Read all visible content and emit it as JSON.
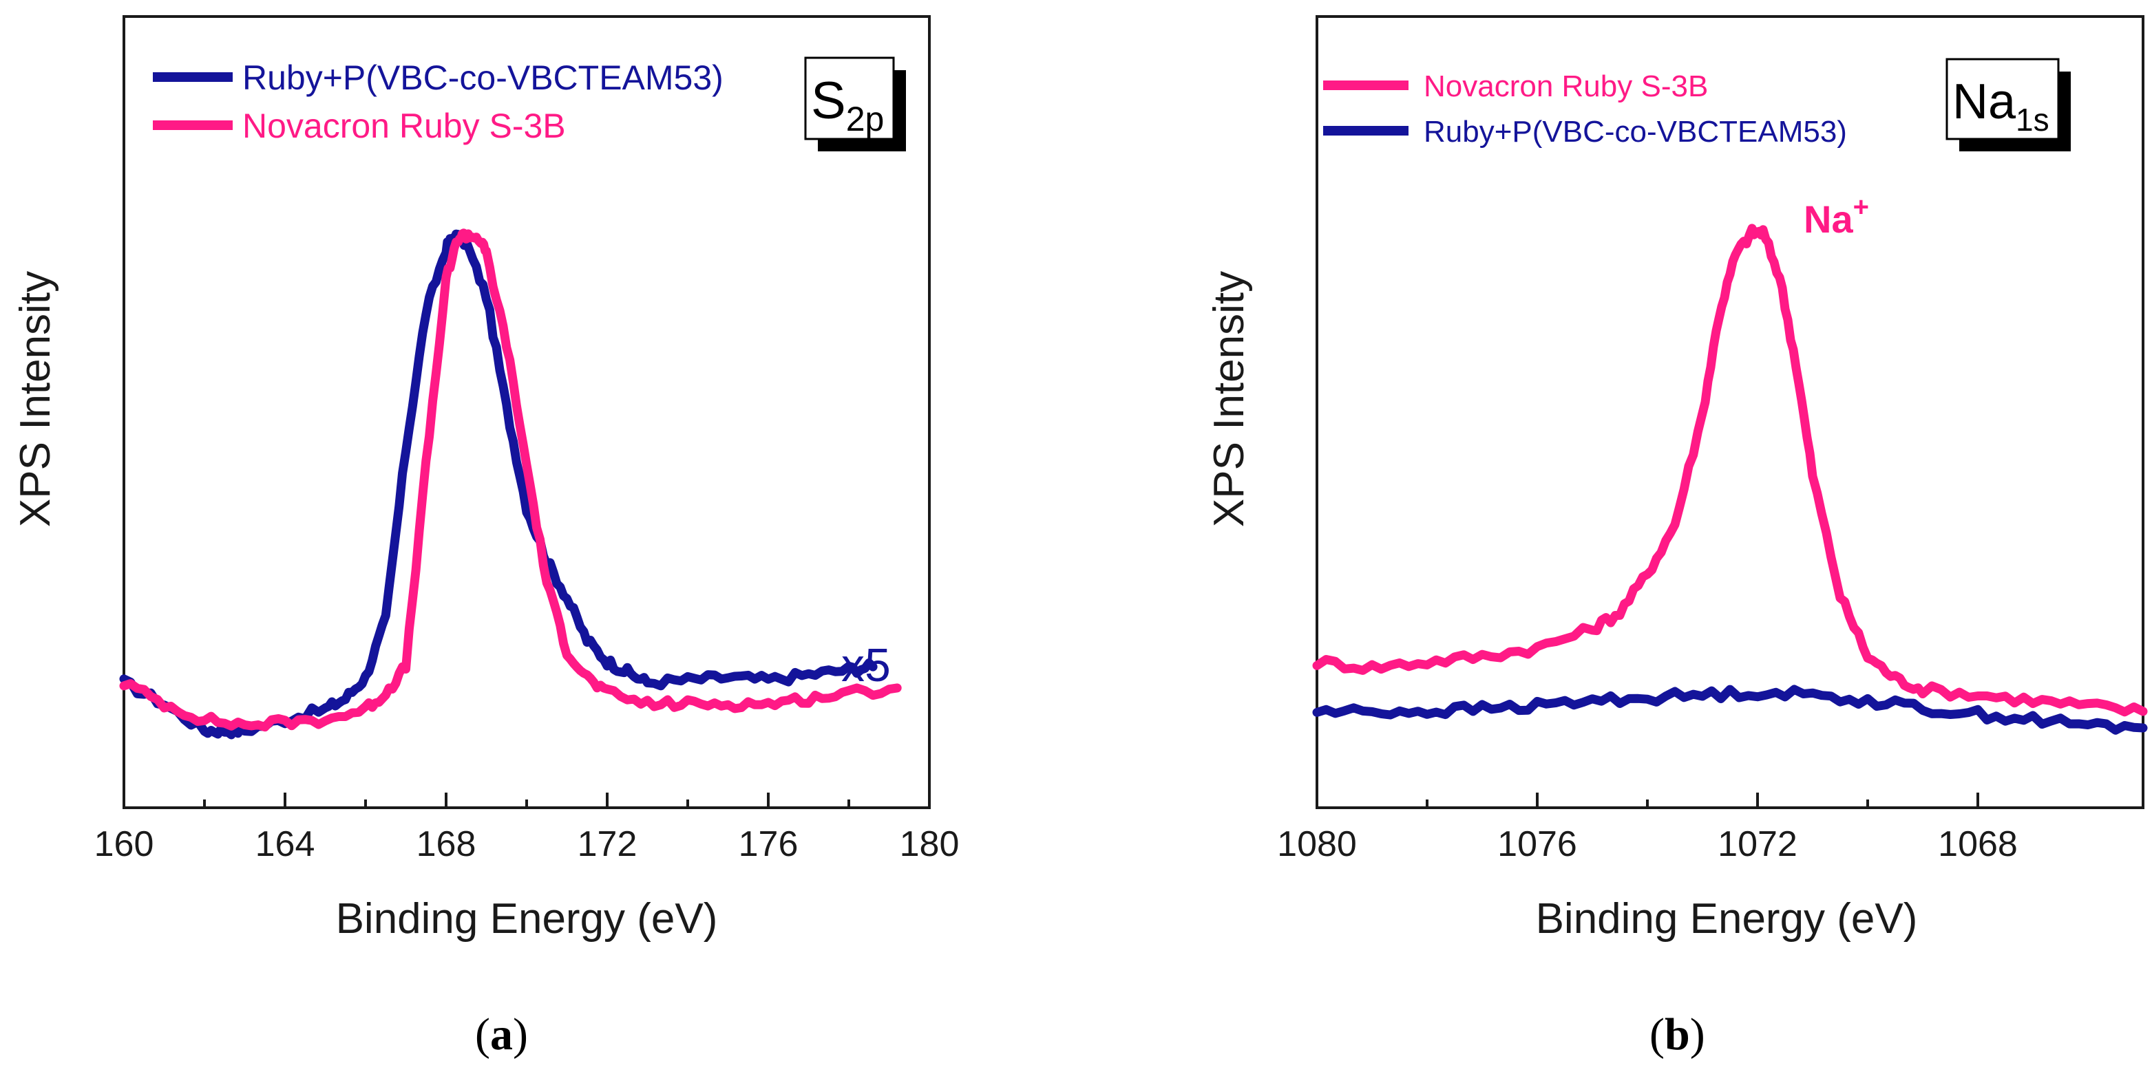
{
  "chart_data": [
    {
      "type": "line",
      "panel_label": "a",
      "xlabel": "Binding Energy (eV)",
      "ylabel": "XPS Intensity",
      "xlim": [
        160,
        180
      ],
      "xticks": [
        "160",
        "164",
        "168",
        "172",
        "176",
        "180"
      ],
      "ylim": [
        0,
        1
      ],
      "badge": {
        "base": "S",
        "sub": "2p"
      },
      "annotation": "x5",
      "legend_position": "top-left",
      "series": [
        {
          "name": "Ruby+P(VBC-co-VBCTEAM53)",
          "color": "#14149a",
          "x": [
            160,
            161,
            162,
            162.5,
            163,
            164,
            165,
            165.5,
            166,
            166.5,
            167,
            167.5,
            168,
            168.2,
            168.5,
            169,
            169.5,
            170,
            170.5,
            171,
            171.5,
            172,
            172.5,
            173,
            174,
            175,
            176,
            177,
            178,
            178.6
          ],
          "y": [
            0.14,
            0.1,
            0.05,
            0.05,
            0.05,
            0.07,
            0.09,
            0.11,
            0.15,
            0.26,
            0.58,
            0.84,
            0.96,
            0.985,
            0.97,
            0.87,
            0.66,
            0.47,
            0.37,
            0.3,
            0.22,
            0.18,
            0.16,
            0.14,
            0.145,
            0.15,
            0.145,
            0.155,
            0.165,
            0.17
          ]
        },
        {
          "name": "Novacron Ruby S-3B",
          "color": "#ff1a86",
          "x": [
            160,
            161,
            162,
            163,
            164,
            165,
            166,
            166.5,
            167,
            167.5,
            168,
            168.3,
            168.5,
            168.8,
            169,
            169.5,
            170,
            170.5,
            171,
            171.5,
            172,
            173,
            174,
            175,
            176,
            177,
            178,
            179.2
          ],
          "y": [
            0.14,
            0.1,
            0.07,
            0.06,
            0.065,
            0.07,
            0.09,
            0.12,
            0.17,
            0.55,
            0.9,
            0.98,
            0.985,
            0.98,
            0.95,
            0.78,
            0.55,
            0.33,
            0.2,
            0.15,
            0.12,
            0.1,
            0.1,
            0.1,
            0.1,
            0.11,
            0.12,
            0.13
          ]
        }
      ]
    },
    {
      "type": "line",
      "panel_label": "b",
      "xlabel": "Binding Energy (eV)",
      "ylabel": "XPS Intensity",
      "xlim": [
        1080,
        1065
      ],
      "xticks": [
        "1080",
        "1076",
        "1072",
        "1068"
      ],
      "ylim": [
        0,
        1
      ],
      "badge": {
        "base": "Na",
        "sub": "1s"
      },
      "annotation": {
        "base": "Na",
        "sup": "+"
      },
      "legend_position": "top-left",
      "series": [
        {
          "name": "Novacron Ruby S-3B",
          "color": "#ff1a86",
          "x": [
            1080,
            1079,
            1078,
            1077,
            1076,
            1075,
            1074.5,
            1074,
            1073.5,
            1073,
            1072.7,
            1072.4,
            1072.1,
            1071.9,
            1071.6,
            1071.3,
            1071,
            1070.5,
            1070,
            1069.5,
            1069,
            1068,
            1067,
            1066,
            1065
          ],
          "y": [
            0.21,
            0.2,
            0.21,
            0.22,
            0.235,
            0.27,
            0.3,
            0.37,
            0.46,
            0.66,
            0.84,
            0.95,
            0.99,
            0.99,
            0.91,
            0.75,
            0.55,
            0.33,
            0.22,
            0.18,
            0.16,
            0.15,
            0.14,
            0.13,
            0.12
          ]
        },
        {
          "name": "Ruby+P(VBC-co-VBCTEAM53)",
          "color": "#14149a",
          "x": [
            1080,
            1079,
            1078,
            1077,
            1076,
            1075,
            1074,
            1073,
            1072,
            1071,
            1070,
            1069,
            1068,
            1067,
            1066,
            1065
          ],
          "y": [
            0.12,
            0.12,
            0.12,
            0.125,
            0.13,
            0.14,
            0.145,
            0.15,
            0.155,
            0.15,
            0.14,
            0.125,
            0.115,
            0.105,
            0.095,
            0.09
          ]
        }
      ]
    }
  ]
}
